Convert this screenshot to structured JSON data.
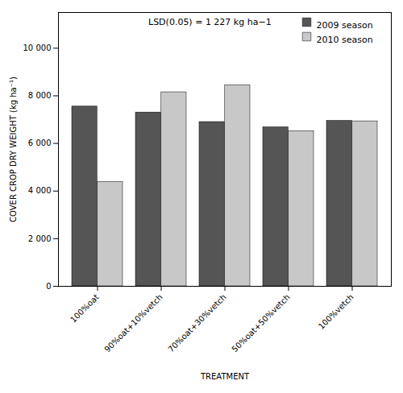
{
  "chart_data": {
    "type": "bar",
    "categories": [
      "100%oat",
      "90%oat+10%vetch",
      "70%oat+30%vetch",
      "50%oat+50%vetch",
      "100%vetch"
    ],
    "series": [
      {
        "name": "2009 season",
        "color": "#555555",
        "values": [
          7550,
          7300,
          6900,
          6680,
          6950
        ]
      },
      {
        "name": "2010 season",
        "color": "#c8c8c8",
        "values": [
          4380,
          8150,
          8450,
          6520,
          6930
        ]
      }
    ],
    "xlabel": "TREATMENT",
    "ylabel": "COVER CROP DRY WEIGHT (kg ha⁻¹)",
    "annotation": "LSD(0.05) = 1 227 kg ha−1",
    "ylim": [
      0,
      11500
    ],
    "yticks": [
      0,
      {
        "value": 2000,
        "label": "2 000"
      },
      {
        "value": 4000,
        "label": "4 000"
      },
      {
        "value": 6000,
        "label": "6 000"
      },
      {
        "value": 8000,
        "label": "8 000"
      },
      {
        "value": 10000,
        "label": "10 000"
      }
    ],
    "legend": "upper right",
    "grid": false
  }
}
